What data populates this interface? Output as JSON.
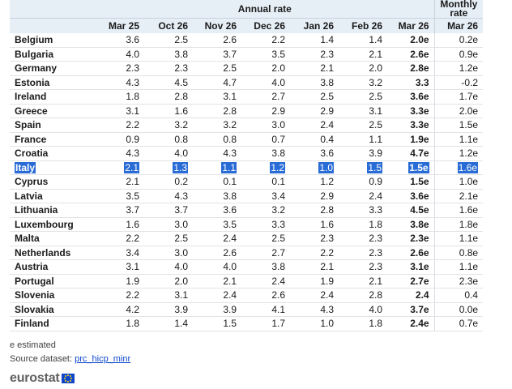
{
  "header": {
    "group_annual": "Annual rate",
    "group_monthly": "Monthly rate",
    "columns": [
      "Mar 25",
      "Oct 26",
      "Nov 26",
      "Dec 26",
      "Jan 26",
      "Feb 26",
      "Mar 26",
      "Mar 26"
    ]
  },
  "rows": [
    {
      "country": "Belgium",
      "values": [
        "3.6",
        "2.5",
        "2.6",
        "2.2",
        "1.4",
        "1.4",
        "2.0e",
        "0.2e"
      ]
    },
    {
      "country": "Bulgaria",
      "values": [
        "4.0",
        "3.8",
        "3.7",
        "3.5",
        "2.3",
        "2.1",
        "2.6e",
        "0.9e"
      ]
    },
    {
      "country": "Germany",
      "values": [
        "2.3",
        "2.3",
        "2.5",
        "2.0",
        "2.1",
        "2.0",
        "2.8e",
        "1.2e"
      ]
    },
    {
      "country": "Estonia",
      "values": [
        "4.3",
        "4.5",
        "4.7",
        "4.0",
        "3.8",
        "3.2",
        "3.3",
        "-0.2"
      ]
    },
    {
      "country": "Ireland",
      "values": [
        "1.8",
        "2.8",
        "3.1",
        "2.7",
        "2.5",
        "2.5",
        "3.6e",
        "1.7e"
      ]
    },
    {
      "country": "Greece",
      "values": [
        "3.1",
        "1.6",
        "2.8",
        "2.9",
        "2.9",
        "3.1",
        "3.3e",
        "2.0e"
      ]
    },
    {
      "country": "Spain",
      "values": [
        "2.2",
        "3.2",
        "3.2",
        "3.0",
        "2.4",
        "2.5",
        "3.3e",
        "1.5e"
      ]
    },
    {
      "country": "France",
      "values": [
        "0.9",
        "0.8",
        "0.8",
        "0.7",
        "0.4",
        "1.1",
        "1.9e",
        "1.1e"
      ]
    },
    {
      "country": "Croatia",
      "values": [
        "4.3",
        "4.0",
        "4.3",
        "3.8",
        "3.6",
        "3.9",
        "4.7e",
        "1.2e"
      ]
    },
    {
      "country": "Italy",
      "values": [
        "2.1",
        "1.3",
        "1.1",
        "1.2",
        "1.0",
        "1.5",
        "1.5e",
        "1.6e"
      ],
      "selected": true
    },
    {
      "country": "Cyprus",
      "values": [
        "2.1",
        "0.2",
        "0.1",
        "0.1",
        "1.2",
        "0.9",
        "1.5e",
        "1.0e"
      ]
    },
    {
      "country": "Latvia",
      "values": [
        "3.5",
        "4.3",
        "3.8",
        "3.4",
        "2.9",
        "2.4",
        "3.6e",
        "2.1e"
      ]
    },
    {
      "country": "Lithuania",
      "values": [
        "3.7",
        "3.7",
        "3.6",
        "3.2",
        "2.8",
        "3.3",
        "4.5e",
        "1.6e"
      ]
    },
    {
      "country": "Luxembourg",
      "values": [
        "1.6",
        "3.0",
        "3.5",
        "3.3",
        "1.6",
        "1.8",
        "3.8e",
        "1.8e"
      ]
    },
    {
      "country": "Malta",
      "values": [
        "2.2",
        "2.5",
        "2.4",
        "2.5",
        "2.3",
        "2.3",
        "2.3e",
        "1.1e"
      ]
    },
    {
      "country": "Netherlands",
      "values": [
        "3.4",
        "3.0",
        "2.6",
        "2.7",
        "2.2",
        "2.3",
        "2.6e",
        "0.8e"
      ]
    },
    {
      "country": "Austria",
      "values": [
        "3.1",
        "4.0",
        "4.0",
        "3.8",
        "2.1",
        "2.3",
        "3.1e",
        "1.1e"
      ]
    },
    {
      "country": "Portugal",
      "values": [
        "1.9",
        "2.0",
        "2.1",
        "2.4",
        "1.9",
        "2.1",
        "2.7e",
        "2.3e"
      ]
    },
    {
      "country": "Slovenia",
      "values": [
        "2.2",
        "3.1",
        "2.4",
        "2.6",
        "2.4",
        "2.8",
        "2.4",
        "0.4"
      ]
    },
    {
      "country": "Slovakia",
      "values": [
        "4.2",
        "3.9",
        "3.9",
        "4.1",
        "4.3",
        "4.0",
        "3.7e",
        "0.0e"
      ]
    },
    {
      "country": "Finland",
      "values": [
        "1.8",
        "1.4",
        "1.5",
        "1.7",
        "1.0",
        "1.8",
        "2.4e",
        "0.7e"
      ]
    }
  ],
  "footer": {
    "note": "e estimated",
    "source_prefix": "Source dataset: ",
    "source_link": "prc_hicp_minr",
    "logo_text": "eurostat"
  },
  "colors": {
    "header_bg": "#e6eef6",
    "selection": "#2a6cd6",
    "link": "#0e47cb"
  }
}
